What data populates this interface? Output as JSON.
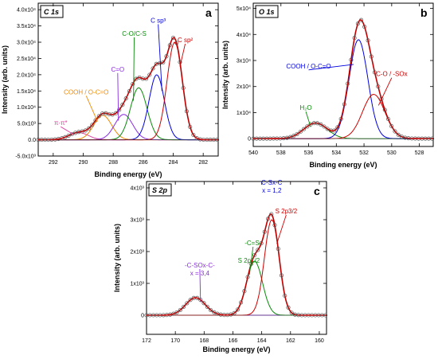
{
  "chart_data": [
    {
      "type": "line",
      "panel_tag": "C 1s",
      "panel_letter": "a",
      "xlabel": "Binding energy (eV)",
      "ylabel": "Intensity (arb. units)",
      "xlim": [
        293,
        281
      ],
      "ylim": [
        -5000,
        42000
      ],
      "x_ticks": [
        "292",
        "290",
        "288",
        "286",
        "284",
        "282"
      ],
      "y_ticks": [
        "-5.0x10³",
        "0.0",
        "5.0x10³",
        "1.0x10⁴",
        "1.5x10⁴",
        "2.0x10⁴",
        "2.5x10⁴",
        "3.0x10⁴",
        "3.5x10⁴",
        "4.0x10⁴"
      ],
      "y_tick_values": [
        -5000,
        0,
        5000,
        10000,
        15000,
        20000,
        25000,
        30000,
        35000,
        40000
      ],
      "x_tick_values": [
        292,
        290,
        288,
        286,
        284,
        282
      ],
      "colors": {
        "envelope": "#c00000",
        "points": "#555555"
      },
      "components": [
        {
          "label": "π-π*",
          "center": 290.3,
          "height": 2200,
          "width": 1.5,
          "color": "#e0409f",
          "label_x": 291.5,
          "label_y": 4500
        },
        {
          "label": "COOH / O-C=O",
          "center": 288.7,
          "height": 7500,
          "width": 1.4,
          "color": "#f08a00",
          "label_x": 289.8,
          "label_y": 14000
        },
        {
          "label": "C=O",
          "center": 287.3,
          "height": 7800,
          "width": 1.4,
          "color": "#8a2be2",
          "label_x": 287.7,
          "label_y": 21000
        },
        {
          "label": "C-O/C-S",
          "center": 286.3,
          "height": 16000,
          "width": 1.3,
          "color": "#0a8a0a",
          "label_x": 286.6,
          "label_y": 32000
        },
        {
          "label": "C sp³",
          "center": 285.1,
          "height": 20000,
          "width": 1.2,
          "color": "#0000dd",
          "label_x": 285.0,
          "label_y": 36000
        },
        {
          "label": "C sp²",
          "center": 283.9,
          "height": 30000,
          "width": 1.2,
          "color": "#d00000",
          "label_x": 283.2,
          "label_y": 30000
        }
      ]
    },
    {
      "type": "line",
      "panel_tag": "O 1s",
      "panel_letter": "b",
      "xlabel": "Binding energy (eV)",
      "ylabel": "Intensity (arb. units)",
      "xlim": [
        540,
        527
      ],
      "ylim": [
        -3000,
        52000
      ],
      "x_ticks": [
        "540",
        "538",
        "536",
        "534",
        "532",
        "530",
        "528"
      ],
      "x_tick_values": [
        540,
        538,
        536,
        534,
        532,
        530,
        528
      ],
      "y_ticks": [
        "0",
        "1x10⁴",
        "2x10⁴",
        "3x10⁴",
        "4x10⁴",
        "5x10⁴"
      ],
      "y_tick_values": [
        0,
        10000,
        20000,
        30000,
        40000,
        50000
      ],
      "colors": {
        "envelope": "#c00000",
        "points": "#555555"
      },
      "components": [
        {
          "label": "H₂O",
          "center": 535.5,
          "height": 6000,
          "width": 2.0,
          "color": "#0a8a0a",
          "label_x": 536.2,
          "label_y": 11000
        },
        {
          "label": "COOH / O-C=O",
          "center": 532.4,
          "height": 38000,
          "width": 1.6,
          "color": "#0000dd",
          "label_x": 536.0,
          "label_y": 27000
        },
        {
          "label": "C-O / -SOx",
          "center": 531.3,
          "height": 17000,
          "width": 1.9,
          "color": "#d00000",
          "label_x": 530.0,
          "label_y": 24000
        }
      ]
    },
    {
      "type": "line",
      "panel_tag": "S 2p",
      "panel_letter": "c",
      "xlabel": "Binding energy (eV)",
      "ylabel": "Intensity (arb. units)",
      "xlim": [
        172,
        159.5
      ],
      "ylim": [
        -600,
        4200
      ],
      "x_ticks": [
        "172",
        "170",
        "168",
        "166",
        "164",
        "162",
        "160"
      ],
      "x_tick_values": [
        172,
        170,
        168,
        166,
        164,
        162,
        160
      ],
      "y_ticks": [
        "0",
        "1x10³",
        "2x10³",
        "3x10³",
        "4x10³"
      ],
      "y_tick_values": [
        0,
        1000,
        2000,
        3000,
        4000
      ],
      "colors": {
        "envelope": "#c00000",
        "points": "#555555"
      },
      "components": [
        {
          "label": "-C-SOx-C-",
          "center": 168.6,
          "height": 550,
          "width": 1.6,
          "color": "#8a2be2",
          "label_x": 168.3,
          "label_y": 1500
        },
        {
          "label": "-C=S-",
          "center": 164.5,
          "height": 1700,
          "width": 1.3,
          "color": "#0a8a0a",
          "label_x": 164.6,
          "label_y": 2200
        },
        {
          "label": "S 2p3/2",
          "center": 163.3,
          "height": 3000,
          "width": 1.2,
          "color": "#d00000",
          "label_x": 162.3,
          "label_y": 3200
        }
      ],
      "extra_labels": [
        "C-Sx-C",
        "x = 1,2",
        "x = 3,4",
        "-C=S-",
        "S 2p1/2",
        "S 2p3/2",
        "-C-SOx-C-"
      ]
    }
  ]
}
